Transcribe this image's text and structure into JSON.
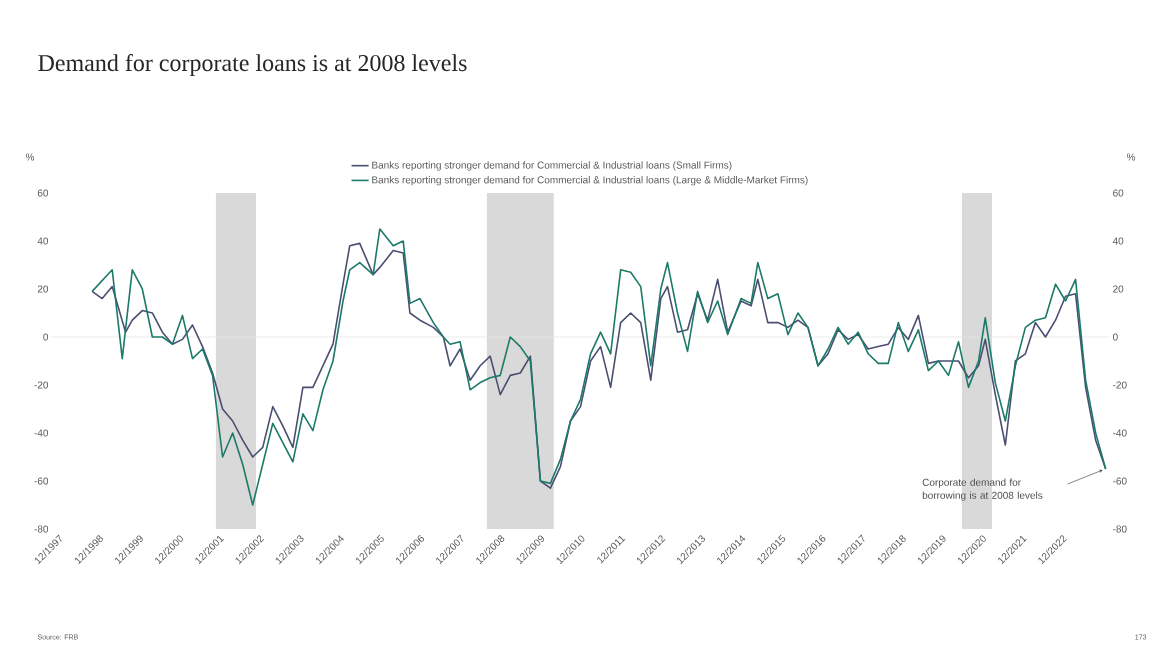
{
  "chart_data": {
    "type": "line",
    "title": "Demand for corporate loans is at 2008 levels",
    "ylabel": "%",
    "y2label": "%",
    "legend": "top",
    "series": [
      {
        "name": "Banks reporting stronger demand for Commercial & Industrial loans (Small Firms)",
        "color": "#4a4f72",
        "x": [
          "1998-10",
          "1999-01",
          "1999-04",
          "1999-08",
          "1999-10",
          "2000-01",
          "2000-04",
          "2000-07",
          "2000-10",
          "2001-01",
          "2001-04",
          "2001-07",
          "2001-10",
          "2002-01",
          "2002-04",
          "2002-07",
          "2002-10",
          "2003-01",
          "2003-04",
          "2003-07",
          "2003-10",
          "2004-01",
          "2004-04",
          "2004-07",
          "2004-10",
          "2005-01",
          "2005-03",
          "2005-06",
          "2005-10",
          "2005-12",
          "2006-04",
          "2006-07",
          "2006-09",
          "2006-12",
          "2007-04",
          "2007-07",
          "2007-09",
          "2007-12",
          "2008-03",
          "2008-06",
          "2008-09",
          "2008-12",
          "2009-03",
          "2009-06",
          "2009-09",
          "2009-12",
          "2010-03",
          "2010-06",
          "2010-09",
          "2010-12",
          "2011-03",
          "2011-06",
          "2011-09",
          "2011-12",
          "2012-03",
          "2012-06",
          "2012-09",
          "2012-12",
          "2013-02",
          "2013-05",
          "2013-08",
          "2013-11",
          "2014-02",
          "2014-05",
          "2014-08",
          "2014-12",
          "2015-03",
          "2015-05",
          "2015-08",
          "2015-11",
          "2016-02",
          "2016-05",
          "2016-08",
          "2016-11",
          "2017-02",
          "2017-05",
          "2017-08",
          "2017-11",
          "2018-02",
          "2018-05",
          "2018-08",
          "2018-11",
          "2019-02",
          "2019-05",
          "2019-08",
          "2019-11",
          "2020-02",
          "2020-05",
          "2020-08",
          "2020-11",
          "2021-01",
          "2021-04",
          "2021-07",
          "2021-10",
          "2022-01",
          "2022-04",
          "2022-07",
          "2022-10",
          "2023-01",
          "2023-04",
          "2023-07",
          "2023-10",
          "2024-01"
        ],
        "values": [
          19,
          16,
          21,
          2,
          7,
          11,
          10,
          2,
          -3,
          -1,
          5,
          -4,
          -15,
          -30,
          -35,
          -43,
          -50,
          -46,
          -29,
          -37,
          -46,
          -21,
          -21,
          -12,
          -3,
          22,
          38,
          39,
          26,
          29,
          36,
          35,
          10,
          7,
          4,
          0,
          -12,
          -5,
          -18,
          -12,
          -8,
          -24,
          -16,
          -15,
          -8,
          -60,
          -63,
          -54,
          -35,
          -29,
          -10,
          -4,
          -21,
          6,
          10,
          6,
          -18,
          16,
          21,
          2,
          3,
          18,
          7,
          24,
          2,
          15,
          13,
          24,
          6,
          6,
          4,
          7,
          4,
          -12,
          -7,
          3,
          -1,
          1,
          -5,
          -4,
          -3,
          4,
          -1,
          9,
          -11,
          -10,
          -10,
          -10,
          -17,
          -12,
          -1,
          -24,
          -45,
          -10,
          -7,
          6,
          0,
          7,
          17,
          18,
          -21,
          -43,
          -55
        ]
      },
      {
        "name": "Banks reporting stronger demand for Commercial & Industrial loans (Large & Middle-Market Firms)",
        "color": "#1c7a68",
        "x": [
          "1998-10",
          "1999-04",
          "1999-07",
          "1999-10",
          "2000-01",
          "2000-04",
          "2000-07",
          "2000-10",
          "2001-01",
          "2001-04",
          "2001-07",
          "2001-10",
          "2002-01",
          "2002-04",
          "2002-07",
          "2002-10",
          "2003-01",
          "2003-04",
          "2003-07",
          "2003-10",
          "2004-01",
          "2004-04",
          "2004-07",
          "2004-10",
          "2005-01",
          "2005-03",
          "2005-06",
          "2005-10",
          "2005-12",
          "2006-04",
          "2006-07",
          "2006-09",
          "2006-12",
          "2007-04",
          "2007-07",
          "2007-09",
          "2007-12",
          "2008-03",
          "2008-06",
          "2008-09",
          "2008-12",
          "2009-03",
          "2009-06",
          "2009-09",
          "2009-12",
          "2010-03",
          "2010-06",
          "2010-09",
          "2010-12",
          "2011-03",
          "2011-06",
          "2011-09",
          "2011-12",
          "2012-03",
          "2012-06",
          "2012-09",
          "2012-12",
          "2013-02",
          "2013-05",
          "2013-08",
          "2013-11",
          "2014-02",
          "2014-05",
          "2014-08",
          "2014-12",
          "2015-03",
          "2015-05",
          "2015-08",
          "2015-11",
          "2016-02",
          "2016-05",
          "2016-08",
          "2016-11",
          "2017-02",
          "2017-05",
          "2017-08",
          "2017-11",
          "2018-02",
          "2018-05",
          "2018-08",
          "2018-11",
          "2019-02",
          "2019-05",
          "2019-08",
          "2019-11",
          "2020-02",
          "2020-05",
          "2020-08",
          "2020-11",
          "2021-01",
          "2021-04",
          "2021-07",
          "2021-10",
          "2022-01",
          "2022-04",
          "2022-07",
          "2022-10",
          "2023-01",
          "2023-04",
          "2023-07",
          "2023-10",
          "2024-01"
        ],
        "values": [
          19,
          28,
          -9,
          28,
          20,
          0,
          0,
          -3,
          9,
          -9,
          -5,
          -16,
          -50,
          -40,
          -53,
          -70,
          -53,
          -36,
          -44,
          -52,
          -32,
          -39,
          -22,
          -10,
          15,
          28,
          31,
          26,
          45,
          38,
          40,
          14,
          16,
          6,
          0,
          -3,
          -2,
          -22,
          -19,
          -17,
          -16,
          0,
          -4,
          -10,
          -60,
          -61,
          -51,
          -35,
          -26,
          -7,
          2,
          -7,
          28,
          27,
          21,
          -12,
          20,
          31,
          10,
          -6,
          19,
          6,
          15,
          1,
          16,
          14,
          31,
          16,
          18,
          1,
          10,
          4,
          -12,
          -5,
          4,
          -3,
          2,
          -7,
          -11,
          -11,
          6,
          -6,
          3,
          -14,
          -10,
          -16,
          -2,
          -21,
          -10,
          8,
          -19,
          -35,
          -12,
          4,
          7,
          8,
          22,
          15,
          24,
          -18,
          -40,
          -55
        ]
      }
    ],
    "xlim": [
      "1997-10",
      "2024-02"
    ],
    "ylim": [
      -80,
      60
    ],
    "y2lim": [
      -80,
      60
    ],
    "xticks": [
      {
        "value": "1997-12",
        "label": "12/1997"
      },
      {
        "value": "1998-12",
        "label": "12/1998"
      },
      {
        "value": "1999-12",
        "label": "12/1999"
      },
      {
        "value": "2000-12",
        "label": "12/2000"
      },
      {
        "value": "2001-12",
        "label": "12/2001"
      },
      {
        "value": "2002-12",
        "label": "12/2002"
      },
      {
        "value": "2003-12",
        "label": "12/2003"
      },
      {
        "value": "2004-12",
        "label": "12/2004"
      },
      {
        "value": "2005-12",
        "label": "12/2005"
      },
      {
        "value": "2006-12",
        "label": "12/2006"
      },
      {
        "value": "2007-12",
        "label": "12/2007"
      },
      {
        "value": "2008-12",
        "label": "12/2008"
      },
      {
        "value": "2009-12",
        "label": "12/2009"
      },
      {
        "value": "2010-12",
        "label": "12/2010"
      },
      {
        "value": "2011-12",
        "label": "12/2011"
      },
      {
        "value": "2012-12",
        "label": "12/2012"
      },
      {
        "value": "2013-12",
        "label": "12/2013"
      },
      {
        "value": "2014-12",
        "label": "12/2014"
      },
      {
        "value": "2015-12",
        "label": "12/2015"
      },
      {
        "value": "2016-12",
        "label": "12/2016"
      },
      {
        "value": "2017-12",
        "label": "12/2017"
      },
      {
        "value": "2018-12",
        "label": "12/2018"
      },
      {
        "value": "2019-12",
        "label": "12/2019"
      },
      {
        "value": "2020-12",
        "label": "12/2020"
      },
      {
        "value": "2021-12",
        "label": "12/2021"
      },
      {
        "value": "2022-12",
        "label": "12/2022"
      }
    ],
    "yticks": [
      -80,
      -60,
      -40,
      -20,
      0,
      20,
      40,
      60
    ],
    "y2ticks": [
      -80,
      -60,
      -40,
      -20,
      0,
      20,
      40,
      60
    ],
    "bands": [
      {
        "axis": "x",
        "from": "2001-11",
        "to": "2002-11",
        "color": "#d9d9d9"
      },
      {
        "axis": "x",
        "from": "2008-08",
        "to": "2010-04",
        "color": "#d9d9d9"
      },
      {
        "axis": "x",
        "from": "2020-06",
        "to": "2021-03",
        "color": "#d9d9d9"
      }
    ],
    "ref_lines": [
      {
        "axis": "y",
        "value": 0,
        "color": "#e6e6e6"
      }
    ],
    "annotations": [
      "Corporate demand for borrowing is at 2008 levels",
      "Source: FRB",
      "173"
    ]
  }
}
